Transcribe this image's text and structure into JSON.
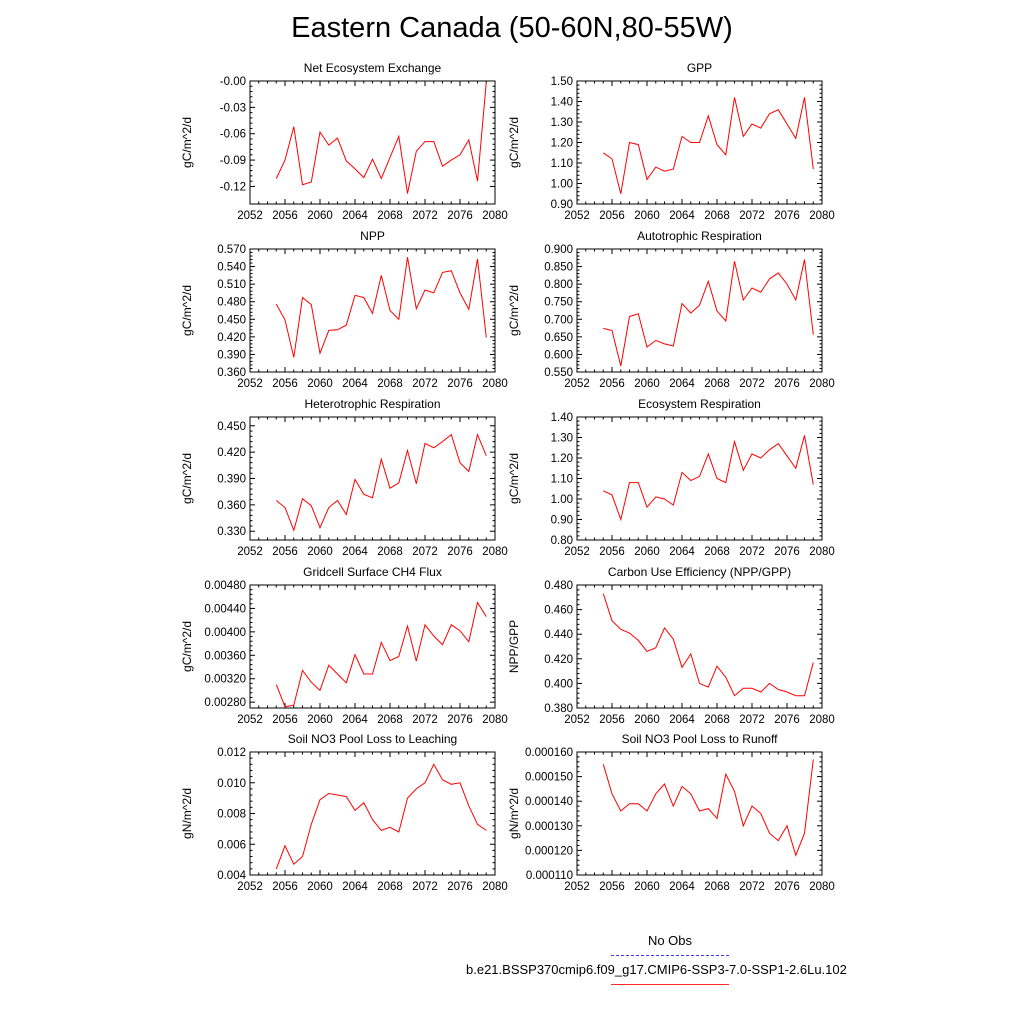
{
  "title": "Eastern Canada (50-60N,80-55W)",
  "colors": {
    "model": "#ff0000",
    "obs": "#0000ff",
    "axis": "#000000"
  },
  "legend": {
    "obs_label": "No Obs",
    "model_label": "b.e21.BSSP370cmip6.f09_g17.CMIP6-SSP3-7.0-SSP1-2.6Lu.102"
  },
  "chart_data": [
    {
      "type": "line",
      "title": "Net Ecosystem Exchange",
      "ylabel": "gC/m^2/d",
      "xlim": [
        2052,
        2080
      ],
      "xticks": [
        "2052",
        "2056",
        "2060",
        "2064",
        "2068",
        "2072",
        "2076",
        "2080"
      ],
      "ylim": [
        -0.14,
        0.0
      ],
      "yticks": [
        "-0.00",
        "-0.03",
        "-0.06",
        "-0.09",
        "-0.12"
      ],
      "ytick_values": [
        0.0,
        -0.03,
        -0.06,
        -0.09,
        -0.12
      ],
      "x": [
        2055,
        2056,
        2057,
        2058,
        2059,
        2060,
        2061,
        2062,
        2063,
        2064,
        2065,
        2066,
        2067,
        2068,
        2069,
        2070,
        2071,
        2072,
        2073,
        2074,
        2075,
        2076,
        2077,
        2078,
        2079
      ],
      "values": [
        -0.111,
        -0.09,
        -0.052,
        -0.118,
        -0.115,
        -0.058,
        -0.073,
        -0.065,
        -0.091,
        -0.1,
        -0.11,
        -0.089,
        -0.111,
        -0.087,
        -0.063,
        -0.128,
        -0.08,
        -0.069,
        -0.069,
        -0.097,
        -0.09,
        -0.084,
        -0.067,
        -0.114,
        -0.001
      ]
    },
    {
      "type": "line",
      "title": "GPP",
      "ylabel": "gC/m^2/d",
      "xlim": [
        2052,
        2080
      ],
      "xticks": [
        "2052",
        "2056",
        "2060",
        "2064",
        "2068",
        "2072",
        "2076",
        "2080"
      ],
      "ylim": [
        0.9,
        1.5
      ],
      "yticks": [
        "1.50",
        "1.40",
        "1.30",
        "1.20",
        "1.10",
        "1.00",
        "0.90"
      ],
      "ytick_values": [
        1.5,
        1.4,
        1.3,
        1.2,
        1.1,
        1.0,
        0.9
      ],
      "x": [
        2055,
        2056,
        2057,
        2058,
        2059,
        2060,
        2061,
        2062,
        2063,
        2064,
        2065,
        2066,
        2067,
        2068,
        2069,
        2070,
        2071,
        2072,
        2073,
        2074,
        2075,
        2076,
        2077,
        2078,
        2079
      ],
      "values": [
        1.15,
        1.12,
        0.95,
        1.2,
        1.19,
        1.02,
        1.08,
        1.06,
        1.07,
        1.23,
        1.2,
        1.2,
        1.33,
        1.19,
        1.14,
        1.42,
        1.23,
        1.29,
        1.27,
        1.34,
        1.36,
        1.29,
        1.22,
        1.42,
        1.07
      ]
    },
    {
      "type": "line",
      "title": "NPP",
      "ylabel": "gC/m^2/d",
      "xlim": [
        2052,
        2080
      ],
      "xticks": [
        "2052",
        "2056",
        "2060",
        "2064",
        "2068",
        "2072",
        "2076",
        "2080"
      ],
      "ylim": [
        0.36,
        0.57
      ],
      "yticks": [
        "0.570",
        "0.540",
        "0.510",
        "0.480",
        "0.450",
        "0.420",
        "0.390",
        "0.360"
      ],
      "ytick_values": [
        0.57,
        0.54,
        0.51,
        0.48,
        0.45,
        0.42,
        0.39,
        0.36
      ],
      "x": [
        2055,
        2056,
        2057,
        2058,
        2059,
        2060,
        2061,
        2062,
        2063,
        2064,
        2065,
        2066,
        2067,
        2068,
        2069,
        2070,
        2071,
        2072,
        2073,
        2074,
        2075,
        2076,
        2077,
        2078,
        2079
      ],
      "values": [
        0.476,
        0.449,
        0.385,
        0.487,
        0.475,
        0.392,
        0.431,
        0.432,
        0.44,
        0.491,
        0.487,
        0.46,
        0.525,
        0.465,
        0.45,
        0.556,
        0.468,
        0.5,
        0.495,
        0.53,
        0.533,
        0.495,
        0.467,
        0.553,
        0.419
      ]
    },
    {
      "type": "line",
      "title": "Autotrophic Respiration",
      "ylabel": "gC/m^2/d",
      "xlim": [
        2052,
        2080
      ],
      "xticks": [
        "2052",
        "2056",
        "2060",
        "2064",
        "2068",
        "2072",
        "2076",
        "2080"
      ],
      "ylim": [
        0.55,
        0.9
      ],
      "yticks": [
        "0.900",
        "0.850",
        "0.800",
        "0.750",
        "0.700",
        "0.650",
        "0.600",
        "0.550"
      ],
      "ytick_values": [
        0.9,
        0.85,
        0.8,
        0.75,
        0.7,
        0.65,
        0.6,
        0.55
      ],
      "x": [
        2055,
        2056,
        2057,
        2058,
        2059,
        2060,
        2061,
        2062,
        2063,
        2064,
        2065,
        2066,
        2067,
        2068,
        2069,
        2070,
        2071,
        2072,
        2073,
        2074,
        2075,
        2076,
        2077,
        2078,
        2079
      ],
      "values": [
        0.674,
        0.668,
        0.567,
        0.708,
        0.716,
        0.621,
        0.64,
        0.63,
        0.624,
        0.745,
        0.718,
        0.74,
        0.808,
        0.724,
        0.695,
        0.865,
        0.755,
        0.789,
        0.777,
        0.815,
        0.832,
        0.8,
        0.755,
        0.87,
        0.656
      ]
    },
    {
      "type": "line",
      "title": "Heterotrophic Respiration",
      "ylabel": "gC/m^2/d",
      "xlim": [
        2052,
        2080
      ],
      "xticks": [
        "2052",
        "2056",
        "2060",
        "2064",
        "2068",
        "2072",
        "2076",
        "2080"
      ],
      "ylim": [
        0.32,
        0.46
      ],
      "yticks": [
        "0.450",
        "0.420",
        "0.390",
        "0.360",
        "0.330"
      ],
      "ytick_values": [
        0.45,
        0.42,
        0.39,
        0.36,
        0.33
      ],
      "x": [
        2055,
        2056,
        2057,
        2058,
        2059,
        2060,
        2061,
        2062,
        2063,
        2064,
        2065,
        2066,
        2067,
        2068,
        2069,
        2070,
        2071,
        2072,
        2073,
        2074,
        2075,
        2076,
        2077,
        2078,
        2079
      ],
      "values": [
        0.365,
        0.357,
        0.331,
        0.367,
        0.359,
        0.334,
        0.357,
        0.365,
        0.349,
        0.389,
        0.372,
        0.368,
        0.412,
        0.379,
        0.385,
        0.422,
        0.384,
        0.43,
        0.425,
        0.432,
        0.44,
        0.408,
        0.398,
        0.44,
        0.416
      ]
    },
    {
      "type": "line",
      "title": "Ecosystem Respiration",
      "ylabel": "gC/m^2/d",
      "xlim": [
        2052,
        2080
      ],
      "xticks": [
        "2052",
        "2056",
        "2060",
        "2064",
        "2068",
        "2072",
        "2076",
        "2080"
      ],
      "ylim": [
        0.8,
        1.4
      ],
      "yticks": [
        "1.40",
        "1.30",
        "1.20",
        "1.10",
        "1.00",
        "0.90",
        "0.80"
      ],
      "ytick_values": [
        1.4,
        1.3,
        1.2,
        1.1,
        1.0,
        0.9,
        0.8
      ],
      "x": [
        2055,
        2056,
        2057,
        2058,
        2059,
        2060,
        2061,
        2062,
        2063,
        2064,
        2065,
        2066,
        2067,
        2068,
        2069,
        2070,
        2071,
        2072,
        2073,
        2074,
        2075,
        2076,
        2077,
        2078,
        2079
      ],
      "values": [
        1.04,
        1.02,
        0.9,
        1.08,
        1.08,
        0.96,
        1.01,
        1.0,
        0.97,
        1.13,
        1.09,
        1.11,
        1.22,
        1.1,
        1.08,
        1.28,
        1.14,
        1.22,
        1.2,
        1.24,
        1.27,
        1.21,
        1.15,
        1.31,
        1.07
      ]
    },
    {
      "type": "line",
      "title": "Gridcell Surface CH4 Flux",
      "ylabel": "gC/m^2/d",
      "xlim": [
        2052,
        2080
      ],
      "xticks": [
        "2052",
        "2056",
        "2060",
        "2064",
        "2068",
        "2072",
        "2076",
        "2080"
      ],
      "ylim": [
        0.0027,
        0.0048
      ],
      "yticks": [
        "0.00480",
        "0.00440",
        "0.00400",
        "0.00360",
        "0.00320",
        "0.00280"
      ],
      "ytick_values": [
        0.0048,
        0.0044,
        0.004,
        0.0036,
        0.0032,
        0.0028
      ],
      "x": [
        2055,
        2056,
        2057,
        2058,
        2059,
        2060,
        2061,
        2062,
        2063,
        2064,
        2065,
        2066,
        2067,
        2068,
        2069,
        2070,
        2071,
        2072,
        2073,
        2074,
        2075,
        2076,
        2077,
        2078,
        2079
      ],
      "values": [
        0.0031,
        0.00272,
        0.00275,
        0.00334,
        0.00314,
        0.003,
        0.00343,
        0.00328,
        0.00313,
        0.00361,
        0.00328,
        0.00328,
        0.00382,
        0.00351,
        0.00358,
        0.0041,
        0.0035,
        0.00412,
        0.00393,
        0.00378,
        0.00412,
        0.00402,
        0.00383,
        0.0045,
        0.00426
      ]
    },
    {
      "type": "line",
      "title": "Carbon Use Efficiency (NPP/GPP)",
      "ylabel": "NPP/GPP",
      "xlim": [
        2052,
        2080
      ],
      "xticks": [
        "2052",
        "2056",
        "2060",
        "2064",
        "2068",
        "2072",
        "2076",
        "2080"
      ],
      "ylim": [
        0.38,
        0.48
      ],
      "yticks": [
        "0.480",
        "0.460",
        "0.440",
        "0.420",
        "0.400",
        "0.380"
      ],
      "ytick_values": [
        0.48,
        0.46,
        0.44,
        0.42,
        0.4,
        0.38
      ],
      "x": [
        2055,
        2056,
        2057,
        2058,
        2059,
        2060,
        2061,
        2062,
        2063,
        2064,
        2065,
        2066,
        2067,
        2068,
        2069,
        2070,
        2071,
        2072,
        2073,
        2074,
        2075,
        2076,
        2077,
        2078,
        2079
      ],
      "values": [
        0.473,
        0.451,
        0.444,
        0.441,
        0.435,
        0.426,
        0.429,
        0.445,
        0.436,
        0.413,
        0.424,
        0.4,
        0.397,
        0.414,
        0.405,
        0.39,
        0.396,
        0.396,
        0.393,
        0.4,
        0.395,
        0.393,
        0.39,
        0.39,
        0.417
      ]
    },
    {
      "type": "line",
      "title": "Soil NO3 Pool Loss to Leaching",
      "ylabel": "gN/m^2/d",
      "xlim": [
        2052,
        2080
      ],
      "xticks": [
        "2052",
        "2056",
        "2060",
        "2064",
        "2068",
        "2072",
        "2076",
        "2080"
      ],
      "ylim": [
        0.004,
        0.012
      ],
      "yticks": [
        "0.012",
        "0.010",
        "0.008",
        "0.006",
        "0.004"
      ],
      "ytick_values": [
        0.012,
        0.01,
        0.008,
        0.006,
        0.004
      ],
      "x": [
        2055,
        2056,
        2057,
        2058,
        2059,
        2060,
        2061,
        2062,
        2063,
        2064,
        2065,
        2066,
        2067,
        2068,
        2069,
        2070,
        2071,
        2072,
        2073,
        2074,
        2075,
        2076,
        2077,
        2078,
        2079
      ],
      "values": [
        0.0044,
        0.0059,
        0.0047,
        0.0052,
        0.0073,
        0.0089,
        0.0093,
        0.0092,
        0.0091,
        0.0082,
        0.0087,
        0.0076,
        0.0069,
        0.0071,
        0.0068,
        0.009,
        0.0096,
        0.01,
        0.0112,
        0.0102,
        0.0099,
        0.01,
        0.0085,
        0.0073,
        0.0069
      ]
    },
    {
      "type": "line",
      "title": "Soil NO3 Pool Loss to Runoff",
      "ylabel": "gN/m^2/d",
      "xlim": [
        2052,
        2080
      ],
      "xticks": [
        "2052",
        "2056",
        "2060",
        "2064",
        "2068",
        "2072",
        "2076",
        "2080"
      ],
      "ylim": [
        0.00011,
        0.00016
      ],
      "yticks": [
        "0.000160",
        "0.000150",
        "0.000140",
        "0.000130",
        "0.000120",
        "0.000110"
      ],
      "ytick_values": [
        0.00016,
        0.00015,
        0.00014,
        0.00013,
        0.00012,
        0.00011
      ],
      "x": [
        2055,
        2056,
        2057,
        2058,
        2059,
        2060,
        2061,
        2062,
        2063,
        2064,
        2065,
        2066,
        2067,
        2068,
        2069,
        2070,
        2071,
        2072,
        2073,
        2074,
        2075,
        2076,
        2077,
        2078,
        2079
      ],
      "values": [
        0.000155,
        0.000143,
        0.000136,
        0.000139,
        0.000139,
        0.000136,
        0.000143,
        0.000147,
        0.000138,
        0.000146,
        0.000143,
        0.000136,
        0.000137,
        0.000133,
        0.000151,
        0.000144,
        0.00013,
        0.000138,
        0.000135,
        0.000127,
        0.000124,
        0.00013,
        0.000118,
        0.000127,
        0.000157
      ]
    }
  ]
}
